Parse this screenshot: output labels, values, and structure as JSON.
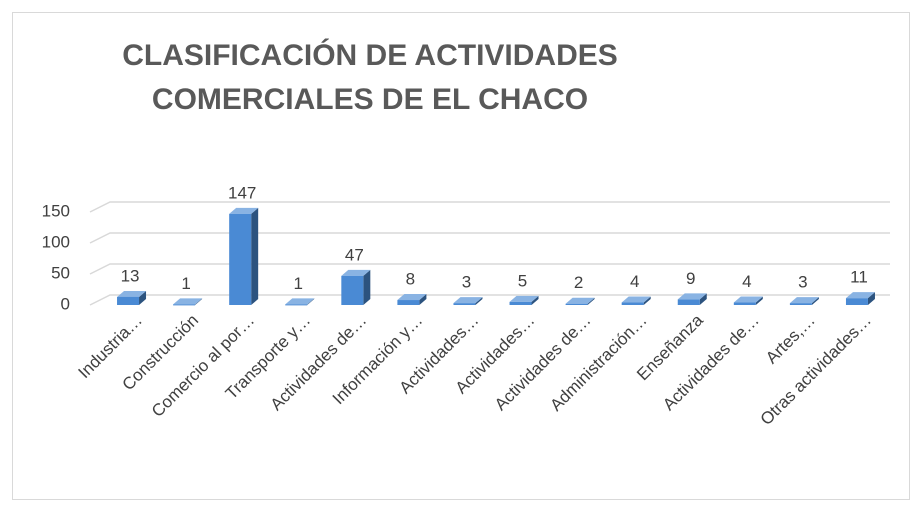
{
  "chart_data": {
    "type": "bar3d",
    "title": [
      "CLASIFICACIÓN DE ACTIVIDADES",
      "COMERCIALES DE EL CHACO"
    ],
    "categories": [
      "Industria…",
      "Construcción",
      "Comercio al por…",
      "Transporte y…",
      "Actividades de…",
      "Información y…",
      "Actividades…",
      "Actividades…",
      "Actividades de…",
      "Administración…",
      "Enseñanza",
      "Actividades de…",
      "Artes,…",
      "Otras actividades…"
    ],
    "values": [
      13,
      1,
      147,
      1,
      47,
      8,
      3,
      5,
      2,
      4,
      9,
      4,
      3,
      11
    ],
    "color": "#4a8ad4",
    "ylim": [
      0,
      150
    ],
    "yticks": [
      0,
      50,
      100,
      150
    ],
    "grid": true
  }
}
